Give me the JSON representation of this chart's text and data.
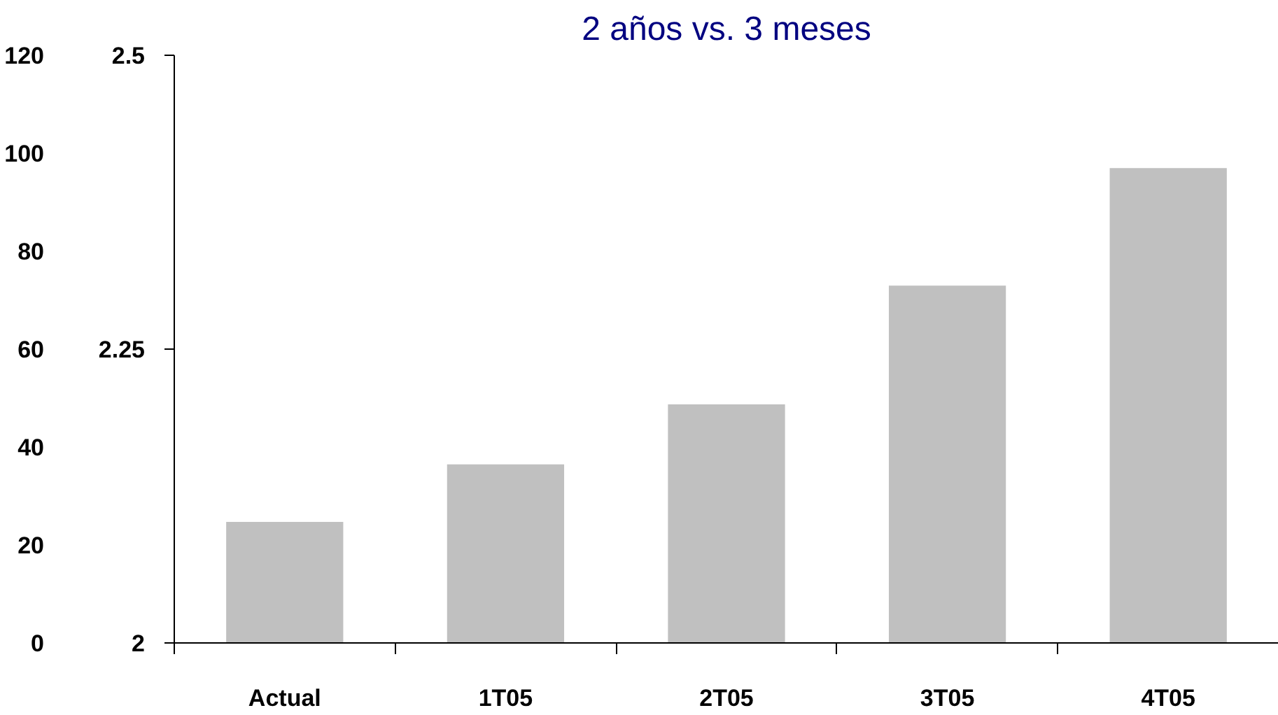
{
  "chart_data": {
    "type": "bar",
    "title": "2 años vs. 3 meses",
    "categories": [
      "Actual",
      "1T05",
      "2T05",
      "3T05",
      "4T05"
    ],
    "values": [
      2.103,
      2.152,
      2.203,
      2.304,
      2.404
    ],
    "color": "#c0c0c0",
    "ylim": [
      2,
      2.5
    ],
    "yticks": [
      2,
      2.25,
      2.5
    ],
    "y2lim": [
      0,
      120
    ],
    "y2ticks": [
      0,
      20,
      40,
      60,
      80,
      100,
      120
    ],
    "grid": false
  }
}
